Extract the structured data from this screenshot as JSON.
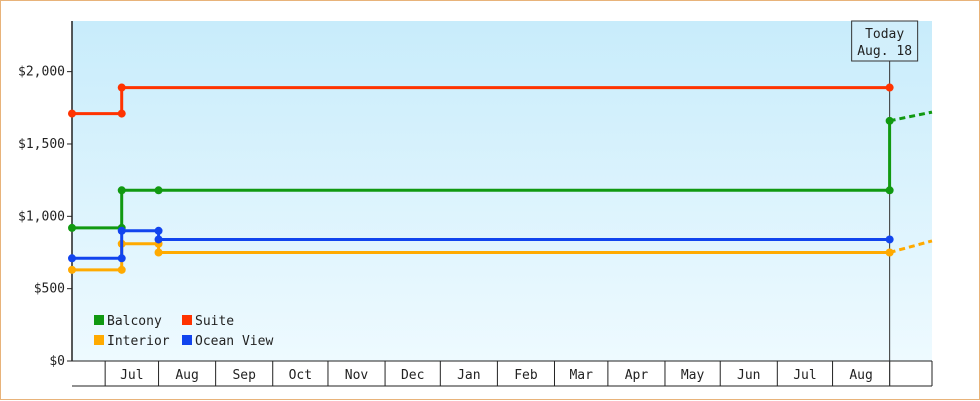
{
  "chart_data": {
    "type": "line",
    "title": "",
    "xlabel": "",
    "ylabel": "",
    "ylim": [
      0,
      2350
    ],
    "y_ticks": [
      {
        "value": 0,
        "label": "$0"
      },
      {
        "value": 500,
        "label": "$500"
      },
      {
        "value": 1000,
        "label": "$1,000"
      },
      {
        "value": 1500,
        "label": "$1,500"
      },
      {
        "value": 2000,
        "label": "$2,000"
      }
    ],
    "x_domain": [
      "2023-06-01",
      "2024-09-10"
    ],
    "x_ticks": [
      {
        "label": "Jul",
        "start": "2023-06-19",
        "end": "2023-07-18"
      },
      {
        "label": "Aug",
        "start": "2023-07-18",
        "end": "2023-08-18"
      },
      {
        "label": "Sep",
        "start": "2023-08-18",
        "end": "2023-09-18"
      },
      {
        "label": "Oct",
        "start": "2023-09-18",
        "end": "2023-10-18"
      },
      {
        "label": "Nov",
        "start": "2023-10-18",
        "end": "2023-11-18"
      },
      {
        "label": "Dec",
        "start": "2023-11-18",
        "end": "2023-12-18"
      },
      {
        "label": "Jan",
        "start": "2023-12-18",
        "end": "2024-01-18"
      },
      {
        "label": "Feb",
        "start": "2024-01-18",
        "end": "2024-02-18"
      },
      {
        "label": "Mar",
        "start": "2024-02-18",
        "end": "2024-03-18"
      },
      {
        "label": "Apr",
        "start": "2024-03-18",
        "end": "2024-04-18"
      },
      {
        "label": "May",
        "start": "2024-04-18",
        "end": "2024-05-18"
      },
      {
        "label": "Jun",
        "start": "2024-05-18",
        "end": "2024-06-18"
      },
      {
        "label": "Jul",
        "start": "2024-06-18",
        "end": "2024-07-18"
      },
      {
        "label": "Aug",
        "start": "2024-07-18",
        "end": "2024-08-18"
      }
    ],
    "x_tick_boundaries": [
      "2023-06-19",
      "2023-07-18",
      "2023-08-18",
      "2023-09-18",
      "2023-10-18",
      "2023-11-18",
      "2023-12-18",
      "2024-01-18",
      "2024-02-18",
      "2024-03-18",
      "2024-04-18",
      "2024-05-18",
      "2024-06-18",
      "2024-07-18",
      "2024-08-18",
      "2024-09-10"
    ],
    "today": {
      "line1": "Today",
      "line2": "Aug. 18",
      "date": "2024-08-18"
    },
    "series": [
      {
        "name": "Balcony",
        "color": "#119911",
        "points": [
          [
            "2023-06-01",
            920
          ],
          [
            "2023-06-28",
            920
          ],
          [
            "2023-06-28",
            1180
          ],
          [
            "2023-07-18",
            1180
          ],
          [
            "2024-08-18",
            1180
          ],
          [
            "2024-08-18",
            1660
          ]
        ],
        "projection": [
          [
            "2024-08-18",
            1660
          ],
          [
            "2024-09-10",
            1720
          ]
        ]
      },
      {
        "name": "Suite",
        "color": "#ff3300",
        "points": [
          [
            "2023-06-01",
            1710
          ],
          [
            "2023-06-28",
            1710
          ],
          [
            "2023-06-28",
            1890
          ],
          [
            "2024-08-18",
            1890
          ]
        ]
      },
      {
        "name": "Interior",
        "color": "#ffaa00",
        "points": [
          [
            "2023-06-01",
            630
          ],
          [
            "2023-06-28",
            630
          ],
          [
            "2023-06-28",
            810
          ],
          [
            "2023-07-18",
            810
          ],
          [
            "2023-07-18",
            750
          ],
          [
            "2024-08-18",
            750
          ]
        ],
        "projection": [
          [
            "2024-08-18",
            750
          ],
          [
            "2024-09-10",
            830
          ]
        ]
      },
      {
        "name": "Ocean View",
        "color": "#1144ee",
        "points": [
          [
            "2023-06-01",
            710
          ],
          [
            "2023-06-28",
            710
          ],
          [
            "2023-06-28",
            900
          ],
          [
            "2023-07-18",
            900
          ],
          [
            "2023-07-18",
            840
          ],
          [
            "2024-08-18",
            840
          ]
        ]
      }
    ],
    "legend": "bottom-left",
    "grid": false,
    "background": "light-blue gradient"
  }
}
